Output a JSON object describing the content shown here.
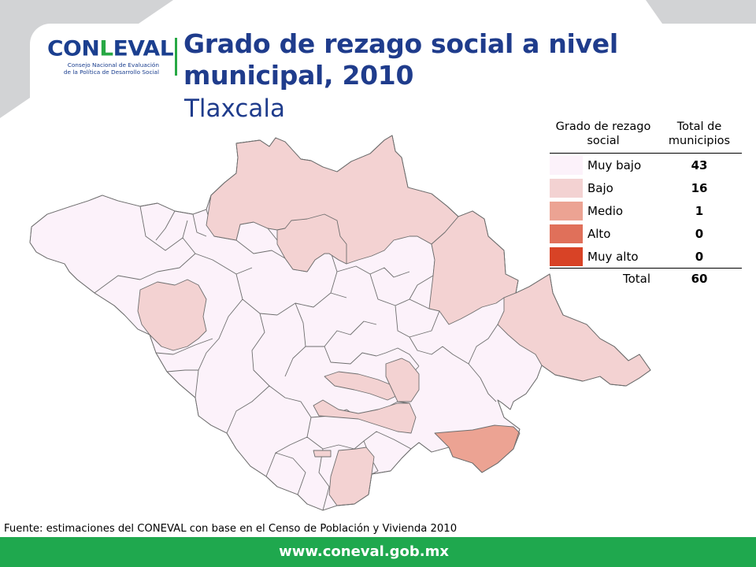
{
  "logo": {
    "word_left": "CON",
    "word_l": "L",
    "word_right": "EVAL",
    "tagline_1": "Consejo Nacional de Evaluación",
    "tagline_2": "de la Política de Desarrollo Social"
  },
  "title": "Grado de rezago social a nivel municipal, 2010",
  "subtitle": "Tlaxcala",
  "legend": {
    "header_category": "Grado de rezago social",
    "header_count": "Total de municipios",
    "rows": [
      {
        "label": "Muy bajo",
        "count": "43",
        "color": "#fcf2fa"
      },
      {
        "label": "Bajo",
        "count": "16",
        "color": "#f3d2d2"
      },
      {
        "label": "Medio",
        "count": "1",
        "color": "#eca393"
      },
      {
        "label": "Alto",
        "count": "0",
        "color": "#e0705a"
      },
      {
        "label": "Muy alto",
        "count": "0",
        "color": "#d84326"
      }
    ],
    "total_label": "Total",
    "total_value": "60"
  },
  "source": "Fuente: estimaciones del CONEVAL con base en el Censo de Población y Vivienda 2010",
  "footer_url": "www.coneval.gob.mx",
  "colors": {
    "brand_blue": "#1f3c8c",
    "brand_green": "#1fa84e",
    "map_border": "#6e6e6e"
  }
}
